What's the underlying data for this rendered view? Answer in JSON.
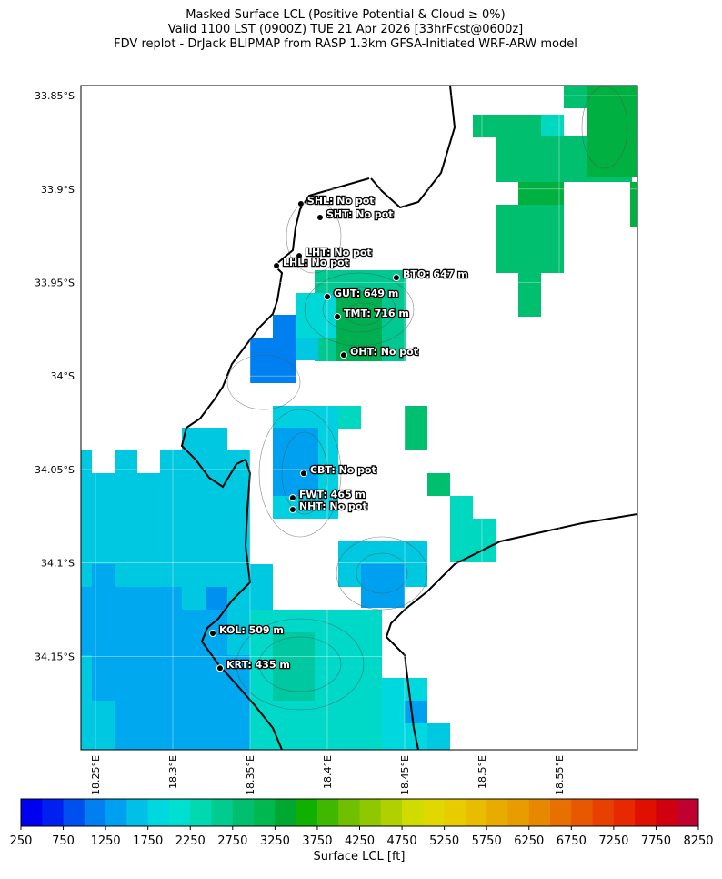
{
  "header": {
    "title_lines": [
      "Masked Surface LCL (Positive Potential & Cloud ≥ 0%)",
      "Valid 1100 LST (0900Z) TUE 21 Apr 2026 [33hrFcst@0600z]",
      "FDV replot - DrJack BLIPMAP from RASP 1.3km GFSA-Initiated WRF-ARW model"
    ]
  },
  "map": {
    "xlim": [
      18.2406,
      18.6006
    ],
    "ylim": [
      -34.2,
      -33.8446
    ],
    "xticks": [
      {
        "value": 18.25,
        "label": "18.25°E"
      },
      {
        "value": 18.3,
        "label": "18.3°E"
      },
      {
        "value": 18.35,
        "label": "18.35°E"
      },
      {
        "value": 18.4,
        "label": "18.4°E"
      },
      {
        "value": 18.45,
        "label": "18.45°E"
      },
      {
        "value": 18.5,
        "label": "18.5°E"
      },
      {
        "value": 18.55,
        "label": "18.55°E"
      }
    ],
    "yticks": [
      {
        "value": -33.85,
        "label": "33.85°S"
      },
      {
        "value": -33.9,
        "label": "33.9°S"
      },
      {
        "value": -33.95,
        "label": "33.95°S"
      },
      {
        "value": -34.0,
        "label": "34°S"
      },
      {
        "value": -34.05,
        "label": "34.05°S"
      },
      {
        "value": -34.1,
        "label": "34.1°S"
      },
      {
        "value": -34.15,
        "label": "34.15°S"
      }
    ],
    "stations": [
      {
        "label": "SHL: No pot",
        "lon": 18.3829,
        "lat": -33.9079
      },
      {
        "label": "SHT: No pot",
        "lon": 18.3953,
        "lat": -33.9152
      },
      {
        "label": "LHT: No pot",
        "lon": 18.3818,
        "lat": -33.9357
      },
      {
        "label": "LHL: No pot",
        "lon": 18.3671,
        "lat": -33.941
      },
      {
        "label": "BTO: 647 m",
        "lon": 18.4447,
        "lat": -33.9474
      },
      {
        "label": "GUT: 649 m",
        "lon": 18.4,
        "lat": -33.9576
      },
      {
        "label": "TMT: 716 m",
        "lon": 18.4065,
        "lat": -33.9683
      },
      {
        "label": "OHT: No pot",
        "lon": 18.4106,
        "lat": -33.9888
      },
      {
        "label": "CBT: No pot",
        "lon": 18.3847,
        "lat": -34.0521
      },
      {
        "label": "FWT: 465 m",
        "lon": 18.3776,
        "lat": -34.0652
      },
      {
        "label": "NHT: No pot",
        "lon": 18.3776,
        "lat": -34.0715
      },
      {
        "label": "KOL: 509 m",
        "lon": 18.3259,
        "lat": -34.1377
      },
      {
        "label": "KRT: 435 m",
        "lon": 18.3306,
        "lat": -34.1563
      }
    ]
  },
  "colorbar": {
    "label": "Surface LCL [ft]",
    "lim": [
      250,
      8250
    ],
    "ticks": [
      250,
      750,
      1250,
      1750,
      2250,
      2750,
      3250,
      3750,
      4250,
      4750,
      5250,
      5750,
      6250,
      6750,
      7250,
      7750,
      8250
    ],
    "colors": [
      "#0000f0",
      "#0020f0",
      "#0050f0",
      "#0080f0",
      "#00a0f0",
      "#00c0e8",
      "#00d8e0",
      "#00e0d0",
      "#00d8b0",
      "#00cc90",
      "#00c070",
      "#00b850",
      "#00a830",
      "#10b000",
      "#40b800",
      "#70c000",
      "#90c800",
      "#b0d000",
      "#d0dc00",
      "#e0d800",
      "#e8cc00",
      "#e8bc00",
      "#e8ac00",
      "#e89c00",
      "#e88800",
      "#e87000",
      "#e85800",
      "#e84000",
      "#e82800",
      "#e01000",
      "#d00010",
      "#c00030"
    ]
  }
}
